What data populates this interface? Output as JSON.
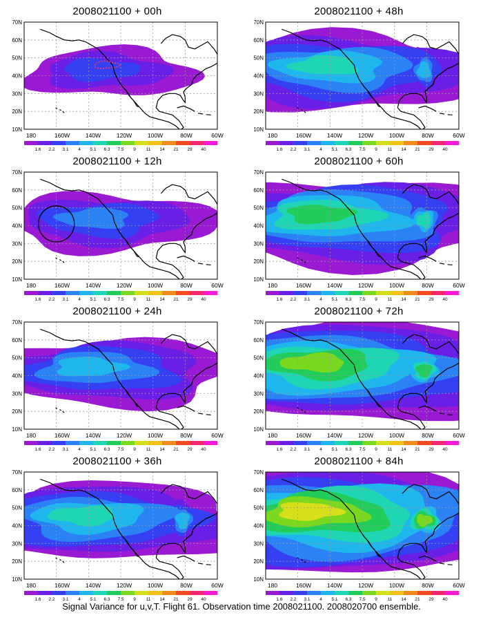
{
  "panels": [
    {
      "title": "2008021100 + 00h",
      "level": 1
    },
    {
      "title": "2008021100 + 48h",
      "level": 4
    },
    {
      "title": "2008021100 + 12h",
      "level": 2
    },
    {
      "title": "2008021100 + 60h",
      "level": 5
    },
    {
      "title": "2008021100 + 24h",
      "level": 3
    },
    {
      "title": "2008021100 + 72h",
      "level": 6
    },
    {
      "title": "2008021100 + 36h",
      "level": 4
    },
    {
      "title": "2008021100 + 84h",
      "level": 7
    }
  ],
  "lat_labels": [
    "70N",
    "60N",
    "50N",
    "40N",
    "30N",
    "20N",
    "10N"
  ],
  "lon_labels": [
    "180",
    "160W",
    "140W",
    "120W",
    "100W",
    "80W",
    "60W"
  ],
  "colorbar": {
    "labels": [
      "1.6",
      "2.2",
      "3.1",
      "4",
      "5.1",
      "6.3",
      "7.5",
      "9",
      "11",
      "14",
      "21",
      "29",
      "40"
    ],
    "colors": [
      "#9a1ad4",
      "#6a1fe6",
      "#3540f2",
      "#2a82f5",
      "#1fb6ee",
      "#1fd6b4",
      "#22cc5a",
      "#7ad81e",
      "#d6df1a",
      "#f2c21a",
      "#f28a1c",
      "#f24a22",
      "#f22670",
      "#f21ad4"
    ]
  },
  "footer": "Signal Variance for u,v,T. Flight 61. Observation time 2008021100. 2008020700 ensemble."
}
